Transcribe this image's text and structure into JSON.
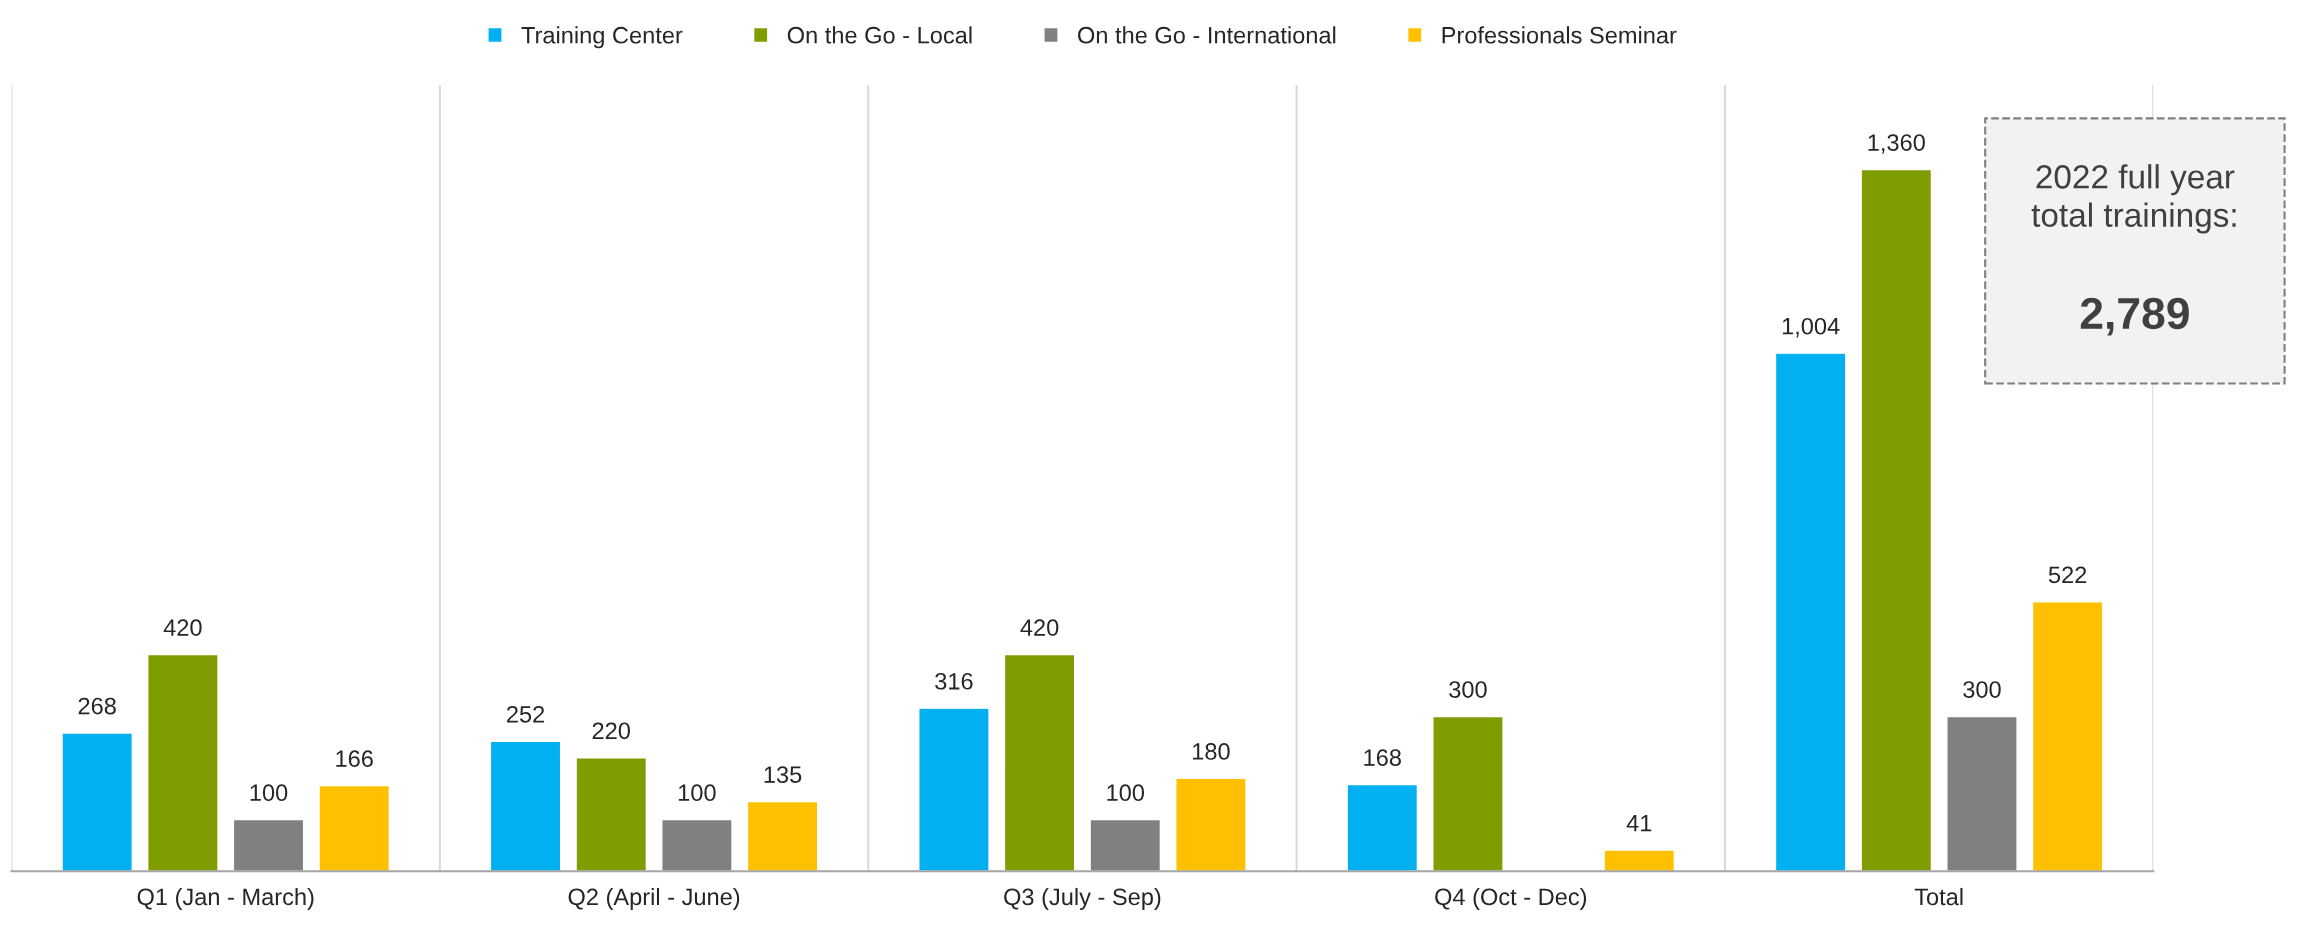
{
  "chart_data": {
    "type": "bar",
    "categories": [
      "Q1 (Jan - March)",
      "Q2 (April - June)",
      "Q3 (July - Sep)",
      "Q4 (Oct - Dec)",
      "Total"
    ],
    "series": [
      {
        "name": "Training Center",
        "color": "#00b0f0",
        "values": [
          268,
          252,
          316,
          168,
          1004
        ],
        "value_labels": [
          "268",
          "252",
          "316",
          "168",
          "1,004"
        ]
      },
      {
        "name": "On the Go - Local",
        "color": "#7f9c00",
        "values": [
          420,
          220,
          420,
          300,
          1360
        ],
        "value_labels": [
          "420",
          "220",
          "420",
          "300",
          "1,360"
        ]
      },
      {
        "name": "On the Go - International",
        "color": "#808080",
        "values": [
          100,
          100,
          100,
          null,
          300
        ],
        "value_labels": [
          "100",
          "100",
          "100",
          null,
          "300"
        ]
      },
      {
        "name": "Professionals Seminar",
        "color": "#ffc000",
        "values": [
          166,
          135,
          180,
          41,
          522
        ],
        "value_labels": [
          "166",
          "135",
          "180",
          "41",
          "522"
        ]
      }
    ],
    "annotations": [
      "2022 full year\ntotal trainings:",
      "2,789"
    ],
    "legend": "top",
    "grid": "x",
    "tick_labels": "x"
  }
}
